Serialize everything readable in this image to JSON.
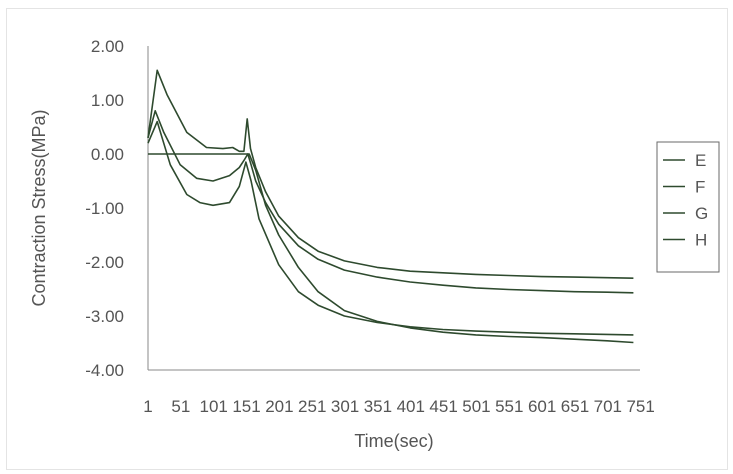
{
  "chart_data": {
    "type": "line",
    "title": "",
    "xlabel": "Time(sec)",
    "ylabel": "Contraction Stress(MPa)",
    "ylim": [
      -4,
      2
    ],
    "xlim": [
      1,
      750
    ],
    "yticks": [
      "2.00",
      "1.00",
      "0.00",
      "-1.00",
      "-2.00",
      "-3.00",
      "-4.00"
    ],
    "xticks": [
      "1",
      "51",
      "101",
      "151",
      "201",
      "251",
      "301",
      "351",
      "401",
      "451",
      "501",
      "551",
      "601",
      "651",
      "701",
      "751"
    ],
    "legend_position": "right",
    "line_color": "#2e4a2e",
    "series": [
      {
        "name": "E",
        "x": [
          1,
          150,
          155,
          165,
          180,
          200,
          230,
          260,
          300,
          350,
          400,
          450,
          500,
          550,
          600,
          650,
          700,
          740
        ],
        "values": [
          0.0,
          0.0,
          0.0,
          -0.3,
          -0.95,
          -1.5,
          -2.1,
          -2.55,
          -2.9,
          -3.1,
          -3.22,
          -3.3,
          -3.35,
          -3.38,
          -3.4,
          -3.43,
          -3.46,
          -3.49
        ]
      },
      {
        "name": "F",
        "x": [
          1,
          15,
          30,
          60,
          90,
          115,
          130,
          140,
          147,
          152,
          157,
          165,
          180,
          200,
          230,
          260,
          300,
          350,
          400,
          450,
          500,
          550,
          600,
          650,
          700,
          740
        ],
        "values": [
          0.3,
          1.55,
          1.1,
          0.4,
          0.12,
          0.1,
          0.12,
          0.05,
          0.05,
          0.65,
          0.1,
          -0.25,
          -0.7,
          -1.15,
          -1.55,
          -1.8,
          -1.98,
          -2.1,
          -2.17,
          -2.2,
          -2.23,
          -2.25,
          -2.27,
          -2.28,
          -2.29,
          -2.3
        ]
      },
      {
        "name": "G",
        "x": [
          1,
          12,
          25,
          50,
          75,
          100,
          125,
          140,
          148,
          153,
          158,
          165,
          180,
          200,
          230,
          260,
          300,
          350,
          400,
          450,
          500,
          550,
          600,
          650,
          700,
          740
        ],
        "values": [
          0.3,
          0.8,
          0.4,
          -0.2,
          -0.45,
          -0.5,
          -0.4,
          -0.25,
          -0.1,
          0.0,
          -0.2,
          -0.5,
          -0.9,
          -1.3,
          -1.7,
          -1.95,
          -2.15,
          -2.28,
          -2.37,
          -2.43,
          -2.48,
          -2.51,
          -2.53,
          -2.55,
          -2.56,
          -2.57
        ]
      },
      {
        "name": "H",
        "x": [
          1,
          15,
          35,
          60,
          80,
          100,
          125,
          140,
          150,
          158,
          170,
          200,
          230,
          260,
          300,
          350,
          400,
          450,
          500,
          550,
          600,
          650,
          700,
          740
        ],
        "values": [
          0.2,
          0.6,
          -0.2,
          -0.75,
          -0.9,
          -0.95,
          -0.9,
          -0.6,
          -0.15,
          -0.5,
          -1.2,
          -2.05,
          -2.55,
          -2.8,
          -3.0,
          -3.12,
          -3.2,
          -3.25,
          -3.28,
          -3.3,
          -3.32,
          -3.33,
          -3.34,
          -3.35
        ]
      }
    ]
  }
}
